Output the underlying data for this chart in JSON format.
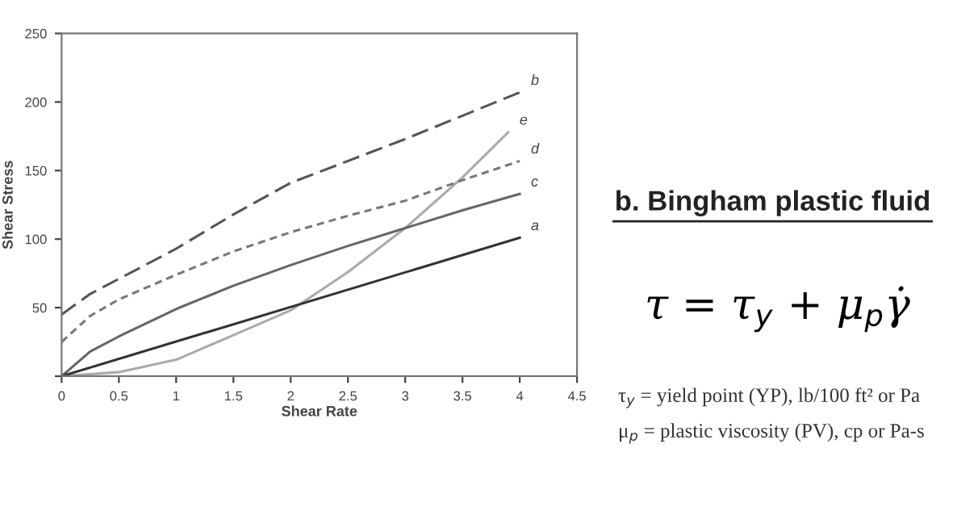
{
  "chart_data": {
    "type": "line",
    "title": "b. Bingham plastic fluid",
    "xlabel": "Shear Rate",
    "ylabel": "Shear Stress",
    "annotations": [
      "τ = τ$_{y}$ + μ$_{p}$γ̇",
      "τ$_{y}$ = yield point (YP), lb/100 ft² or Pa",
      "μ$_{p}$ = plastic viscosity (PV), cp or Pa-s"
    ],
    "xlim": [
      0,
      4.5
    ],
    "ylim": [
      0,
      250
    ],
    "xticks": [
      0,
      0.5,
      1,
      1.5,
      2,
      2.5,
      3,
      3.5,
      4,
      4.5
    ],
    "yticks": [
      {
        "value": 0,
        "label": null
      },
      50,
      100,
      150,
      200,
      250
    ],
    "grid": false,
    "legend": false,
    "marker": "none",
    "series": [
      {
        "name": "b",
        "color": "#555555",
        "line_style": "dashed",
        "x": [
          0,
          0.25,
          0.5,
          1,
          1.5,
          2,
          2.5,
          3,
          3.5,
          4
        ],
        "values": [
          45,
          60,
          71,
          93,
          118,
          141,
          157,
          173,
          190,
          207
        ]
      },
      {
        "name": "e",
        "color": "#aaaaaa",
        "line_style": "solid",
        "x": [
          0,
          0.5,
          1,
          1.5,
          2,
          2.5,
          3,
          3.5,
          3.9
        ],
        "values": [
          0,
          3,
          12,
          30,
          48,
          76,
          108,
          145,
          178
        ]
      },
      {
        "name": "d",
        "color": "#777777",
        "line_style": "dotted",
        "x": [
          0,
          0.25,
          0.5,
          1,
          1.5,
          2,
          2.5,
          3,
          3.5,
          4
        ],
        "values": [
          25,
          44,
          56,
          74,
          91,
          105,
          117,
          128,
          143,
          157
        ]
      },
      {
        "name": "c",
        "color": "#666666",
        "line_style": "solid",
        "x": [
          0,
          0.25,
          0.5,
          1,
          1.5,
          2,
          2.5,
          3,
          3.5,
          4
        ],
        "values": [
          0,
          18,
          29,
          49,
          66,
          81,
          95,
          108,
          121,
          133
        ]
      },
      {
        "name": "a",
        "color": "#333333",
        "line_style": "solid",
        "x": [
          0,
          4
        ],
        "values": [
          0,
          101
        ]
      }
    ]
  }
}
